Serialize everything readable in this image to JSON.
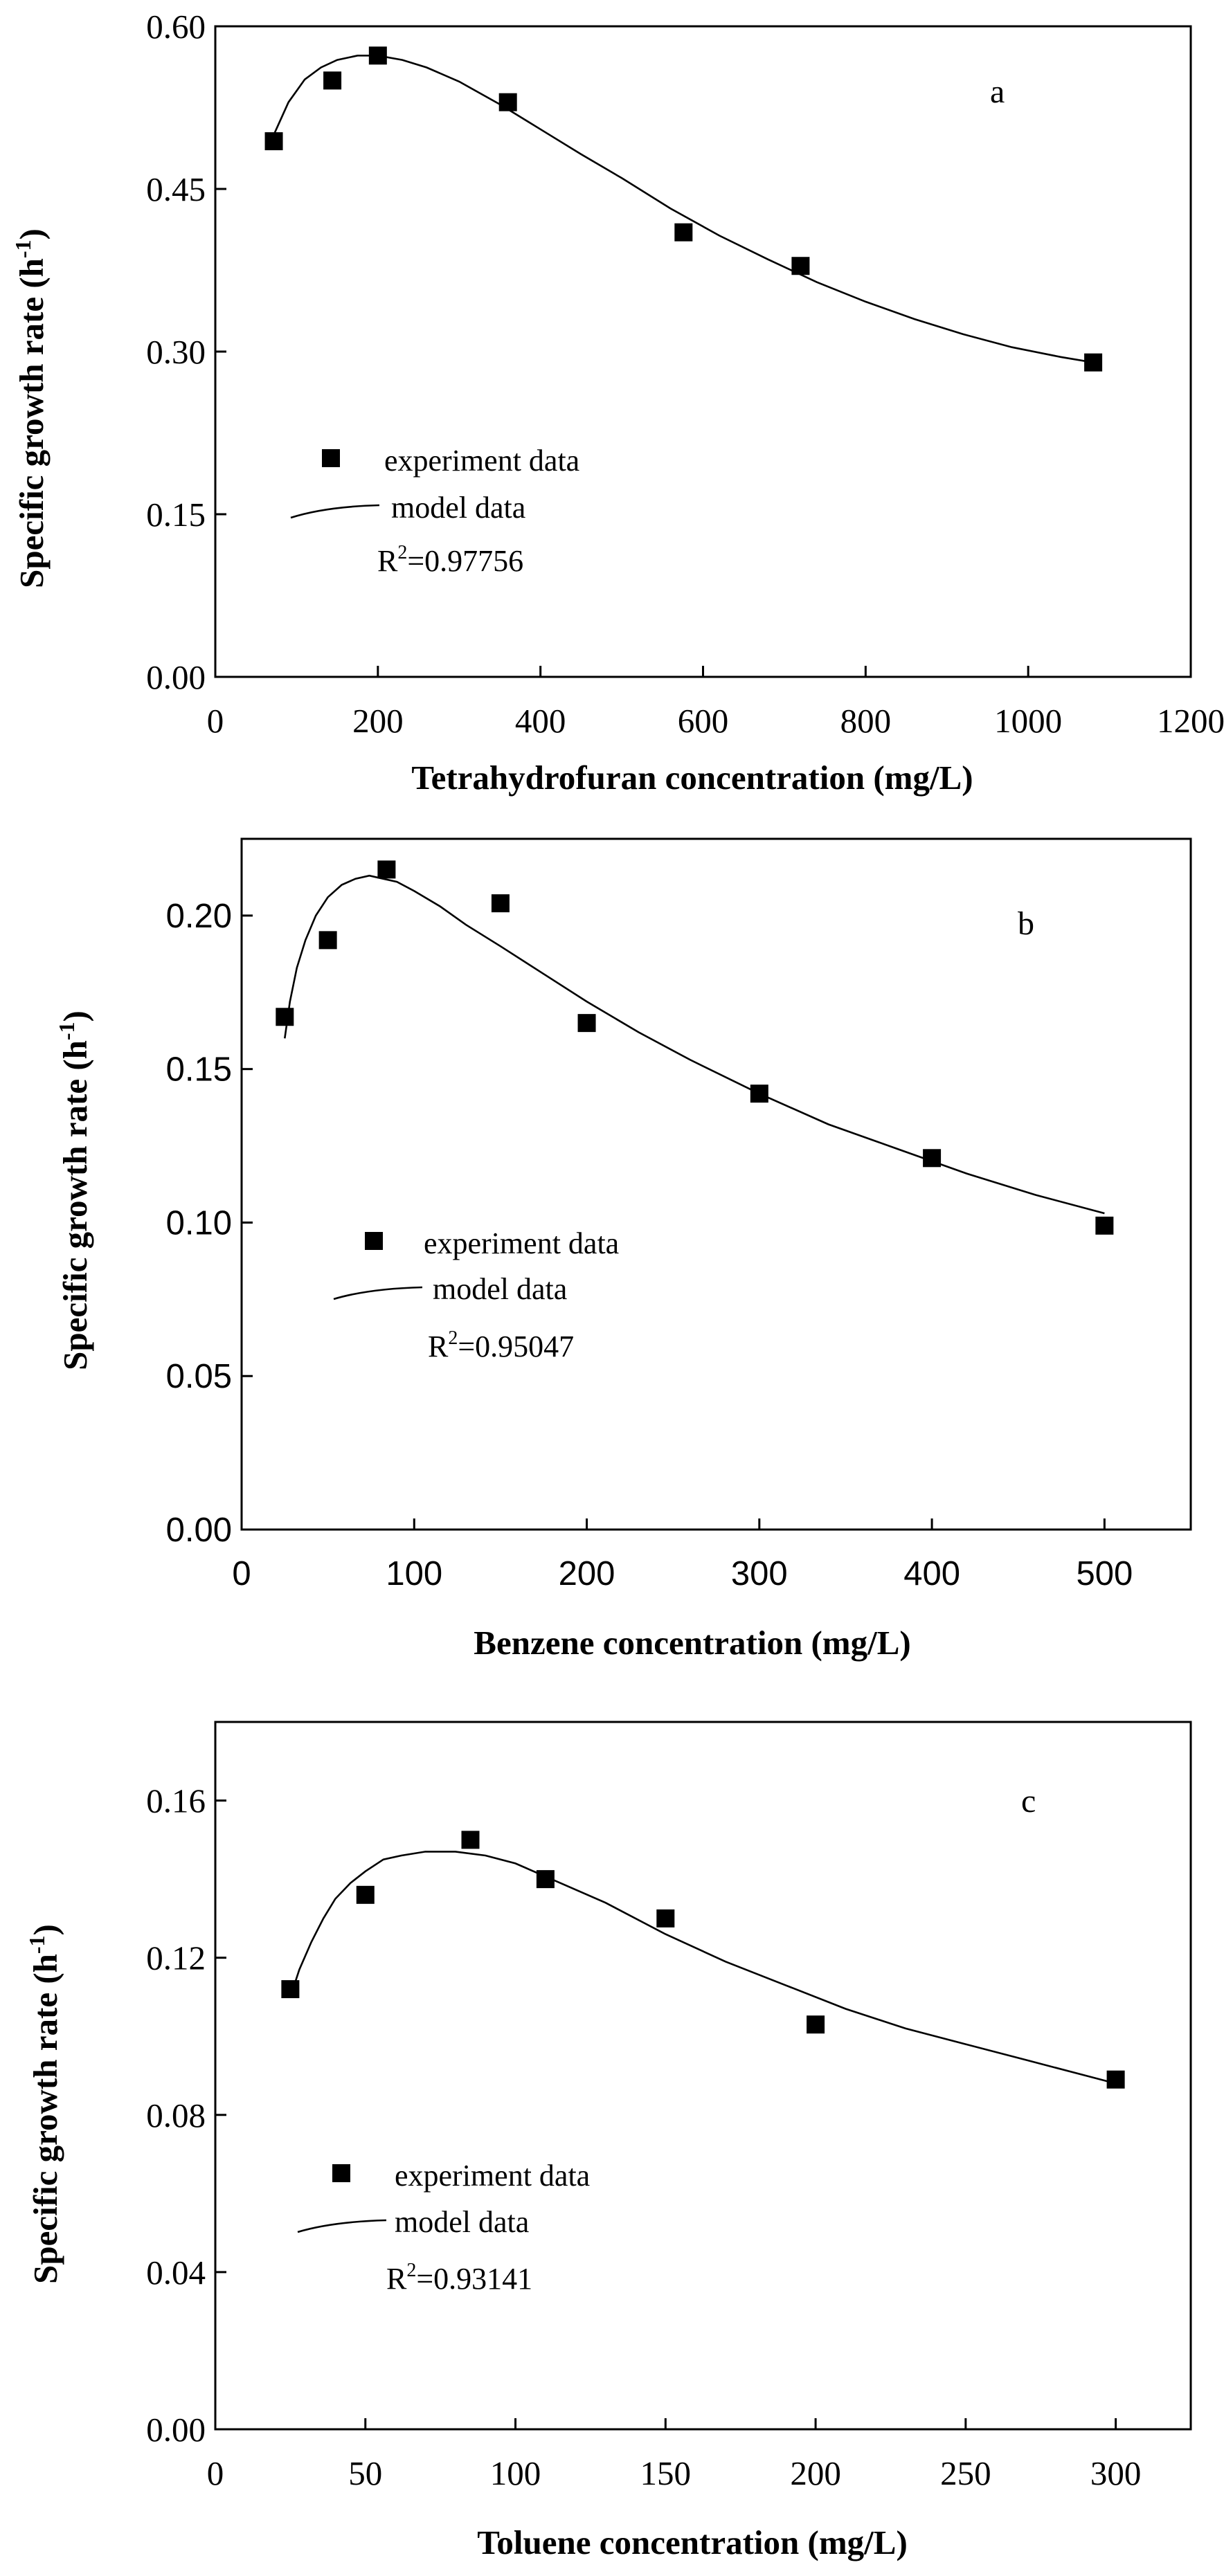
{
  "figure_title": "",
  "chart_data": [
    {
      "type": "scatter",
      "panel": "a",
      "title": "",
      "xlabel": "Tetrahydrofuran concentration (mg/L)",
      "ylabel": "Specific growth rate (h",
      "ylabel_sup": "-1",
      "ylabel_close": ")",
      "xlim": [
        0,
        1200
      ],
      "ylim": [
        0,
        0.6
      ],
      "xticks": [
        0,
        200,
        400,
        600,
        800,
        1000,
        1200
      ],
      "xtick_labels": [
        "0",
        "200",
        "400",
        "600",
        "800",
        "1000",
        "1200"
      ],
      "yticks": [
        0,
        0.15,
        0.3,
        0.45,
        0.6
      ],
      "ytick_labels": [
        "0.00",
        "0.15",
        "0.30",
        "0.45",
        "0.60"
      ],
      "grid": false,
      "legend_position": "left-middle",
      "legend": {
        "marker_label": "experiment data",
        "line_label": "model data"
      },
      "r2": {
        "prefix": "R",
        "sup": "2",
        "value": "=0.97756"
      },
      "series": [
        {
          "name": "experiment data",
          "kind": "markers",
          "x": [
            72,
            144,
            200,
            360,
            576,
            720,
            1080
          ],
          "y": [
            0.494,
            0.55,
            0.573,
            0.53,
            0.41,
            0.379,
            0.29
          ]
        },
        {
          "name": "model data",
          "kind": "line",
          "x": [
            72,
            90,
            110,
            130,
            150,
            175,
            200,
            230,
            260,
            300,
            350,
            400,
            450,
            500,
            560,
            620,
            680,
            740,
            800,
            860,
            920,
            980,
            1040,
            1080
          ],
          "y": [
            0.5,
            0.53,
            0.551,
            0.562,
            0.569,
            0.573,
            0.573,
            0.569,
            0.562,
            0.549,
            0.528,
            0.505,
            0.482,
            0.46,
            0.432,
            0.407,
            0.385,
            0.364,
            0.346,
            0.33,
            0.316,
            0.304,
            0.295,
            0.29
          ]
        }
      ]
    },
    {
      "type": "scatter",
      "panel": "b",
      "title": "",
      "xlabel": "Benzene concentration (mg/L)",
      "ylabel": "Specific growth rate (h",
      "ylabel_sup": "-1",
      "ylabel_close": ")",
      "xlim": [
        0,
        550
      ],
      "ylim": [
        0,
        0.225
      ],
      "xticks": [
        0,
        100,
        200,
        300,
        400,
        500
      ],
      "xtick_labels": [
        "0",
        "100",
        "200",
        "300",
        "400",
        "500"
      ],
      "yticks": [
        0,
        0.05,
        0.1,
        0.15,
        0.2
      ],
      "ytick_labels": [
        "0.00",
        "0.05",
        "0.10",
        "0.15",
        "0.20"
      ],
      "grid": false,
      "legend_position": "left-middle",
      "legend": {
        "marker_label": "experiment data",
        "line_label": "model data"
      },
      "r2": {
        "prefix": "R",
        "sup": "2",
        "value": "=0.95047"
      },
      "series": [
        {
          "name": "experiment data",
          "kind": "markers",
          "x": [
            25,
            50,
            84,
            150,
            200,
            300,
            400,
            500
          ],
          "y": [
            0.167,
            0.192,
            0.215,
            0.204,
            0.165,
            0.142,
            0.121,
            0.099
          ]
        },
        {
          "name": "model data",
          "kind": "line",
          "x": [
            25,
            28,
            32,
            37,
            43,
            50,
            58,
            66,
            74,
            82,
            90,
            100,
            115,
            130,
            150,
            175,
            200,
            230,
            260,
            300,
            340,
            380,
            420,
            460,
            500
          ],
          "y": [
            0.16,
            0.172,
            0.183,
            0.192,
            0.2,
            0.206,
            0.21,
            0.212,
            0.213,
            0.212,
            0.211,
            0.208,
            0.203,
            0.197,
            0.19,
            0.181,
            0.172,
            0.162,
            0.153,
            0.142,
            0.132,
            0.124,
            0.116,
            0.109,
            0.103
          ]
        }
      ]
    },
    {
      "type": "scatter",
      "panel": "c",
      "title": "",
      "xlabel": "Toluene concentration (mg/L)",
      "ylabel": "Specific growth rate (h",
      "ylabel_sup": "-1",
      "ylabel_close": ")",
      "xlim": [
        0,
        325
      ],
      "ylim": [
        0,
        0.18
      ],
      "xticks": [
        0,
        50,
        100,
        150,
        200,
        250,
        300
      ],
      "xtick_labels": [
        "0",
        "50",
        "100",
        "150",
        "200",
        "250",
        "300"
      ],
      "yticks": [
        0,
        0.04,
        0.08,
        0.12,
        0.16
      ],
      "ytick_labels": [
        "0.00",
        "0.04",
        "0.08",
        "0.12",
        "0.16"
      ],
      "grid": false,
      "legend_position": "left-middle",
      "legend": {
        "marker_label": "experiment data",
        "line_label": "model data"
      },
      "r2": {
        "prefix": "R",
        "sup": "2",
        "value": "=0.93141"
      },
      "series": [
        {
          "name": "experiment data",
          "kind": "markers",
          "x": [
            25,
            50,
            85,
            110,
            150,
            200,
            300
          ],
          "y": [
            0.112,
            0.136,
            0.15,
            0.14,
            0.13,
            0.103,
            0.089
          ]
        },
        {
          "name": "model data",
          "kind": "line",
          "x": [
            25,
            28,
            32,
            36,
            40,
            45,
            50,
            56,
            62,
            70,
            80,
            90,
            100,
            115,
            130,
            150,
            170,
            190,
            210,
            230,
            250,
            270,
            290,
            300
          ],
          "y": [
            0.11,
            0.117,
            0.124,
            0.13,
            0.135,
            0.139,
            0.142,
            0.145,
            0.146,
            0.147,
            0.147,
            0.146,
            0.144,
            0.139,
            0.134,
            0.126,
            0.119,
            0.113,
            0.107,
            0.102,
            0.098,
            0.094,
            0.09,
            0.088
          ]
        }
      ]
    }
  ]
}
